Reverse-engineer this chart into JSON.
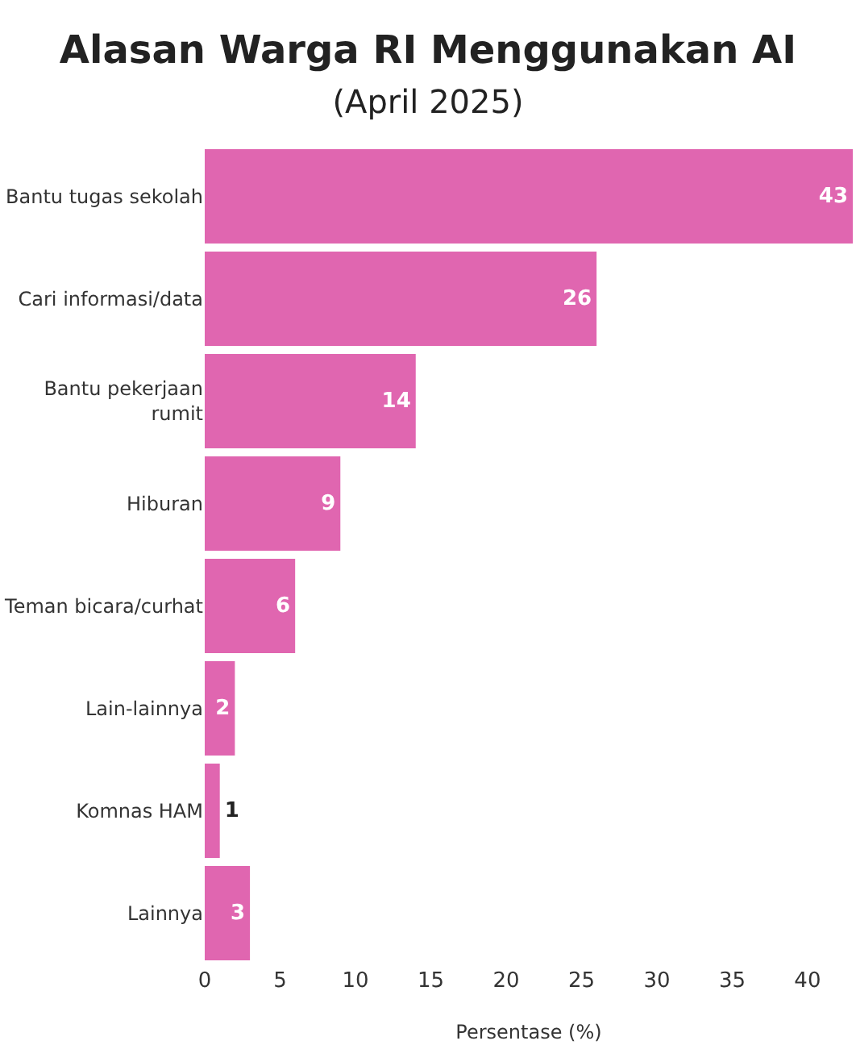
{
  "chart_data": {
    "type": "bar",
    "orientation": "horizontal",
    "title": "Alasan Warga RI Menggunakan AI",
    "subtitle": "(April 2025)",
    "xlabel": "Persentase (%)",
    "categories": [
      "Bantu tugas sekolah",
      "Cari informasi/data",
      "Bantu pekerjaan rumit",
      "Hiburan",
      "Teman bicara/curhat",
      "Lain-lainnya",
      "Komnas HAM",
      "Lainnya"
    ],
    "values": [
      43,
      26,
      14,
      9,
      6,
      2,
      1,
      3
    ],
    "color": "#e066b0",
    "data_labels": true,
    "xlim": [
      0,
      43
    ],
    "xticks": [
      0,
      5,
      10,
      15,
      20,
      25,
      30,
      35,
      40
    ],
    "grid": false,
    "legend": false
  }
}
